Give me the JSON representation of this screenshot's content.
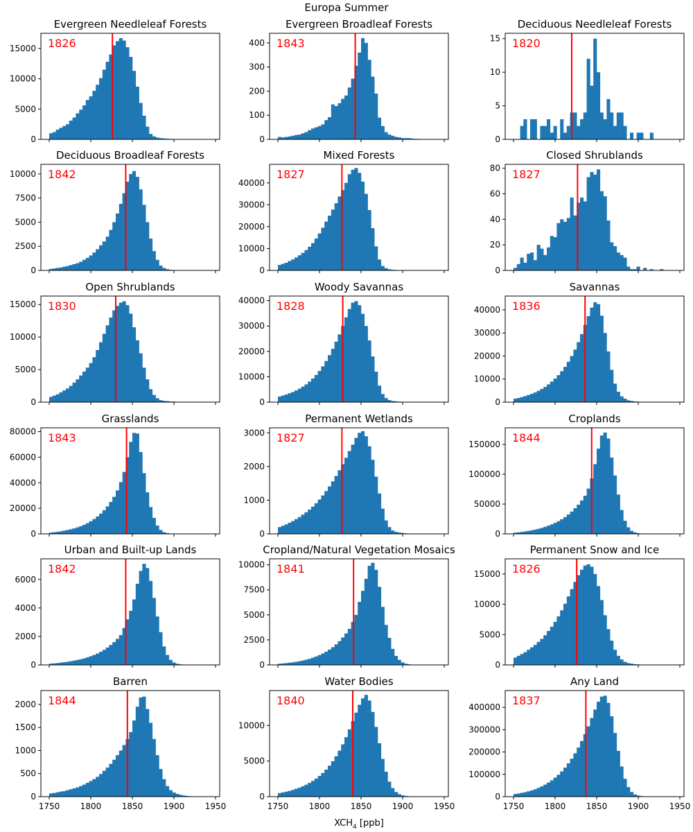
{
  "chart_data": {
    "type": "bar",
    "title": "Europa Summer",
    "xlabel": "XCH4 [ppb]",
    "xlabel_main": "XCH",
    "xlabel_sub": "4",
    "xlabel_units": " [ppb]",
    "xlim": [
      1740,
      1955
    ],
    "x_ticks": [
      "1750",
      "1800",
      "1850",
      "1900",
      "1950"
    ],
    "bin_edges_range": [
      1750,
      1950
    ],
    "bin_width": 4,
    "colors": {
      "bars": "#1f77b4",
      "median": "#ff0000"
    },
    "panels": [
      {
        "title": "Evergreen Needleleaf Forests",
        "median": 1826,
        "median_label": "1826",
        "ylim": [
          0,
          17500
        ],
        "y_ticks": [
          "0",
          "5000",
          "10000",
          "15000"
        ],
        "values": [
          1000,
          1200,
          1600,
          1900,
          2200,
          2500,
          3100,
          3600,
          4300,
          4900,
          5600,
          6500,
          7100,
          8000,
          9000,
          10100,
          11500,
          12800,
          14000,
          15500,
          16200,
          16700,
          16300,
          15200,
          13600,
          11300,
          8700,
          6000,
          3900,
          2100,
          900,
          500,
          300,
          200,
          150,
          100,
          80,
          60,
          50,
          40,
          30,
          20,
          10,
          10,
          5,
          5,
          0,
          0,
          0,
          0
        ]
      },
      {
        "title": "Evergreen Broadleaf Forests",
        "median": 1843,
        "median_label": "1843",
        "ylim": [
          0,
          440
        ],
        "y_ticks": [
          "0",
          "100",
          "200",
          "300",
          "400"
        ],
        "values": [
          10,
          8,
          10,
          12,
          15,
          18,
          20,
          25,
          30,
          38,
          45,
          50,
          55,
          62,
          80,
          92,
          145,
          138,
          150,
          168,
          182,
          215,
          252,
          305,
          360,
          420,
          400,
          330,
          260,
          190,
          90,
          55,
          30,
          20,
          15,
          10,
          8,
          5,
          5,
          5,
          3,
          2,
          2,
          1,
          1,
          1,
          0,
          0,
          0,
          0
        ]
      },
      {
        "title": "Deciduous Needleleaf Forests",
        "median": 1820,
        "median_label": "1820",
        "ylim": [
          0,
          15.8
        ],
        "y_ticks": [
          "0",
          "5",
          "10",
          "15"
        ],
        "values": [
          0,
          0,
          2,
          3,
          0,
          3,
          3,
          0,
          2,
          2,
          3,
          1,
          2,
          0,
          3,
          1,
          2,
          4,
          4,
          2,
          3,
          4,
          12,
          8,
          15,
          10,
          4,
          3,
          6,
          4,
          2,
          4,
          4,
          2,
          0,
          1,
          0,
          1,
          1,
          0,
          0,
          1,
          0,
          0,
          0,
          0,
          0,
          0,
          0,
          0
        ]
      },
      {
        "title": "Deciduous Broadleaf Forests",
        "median": 1842,
        "median_label": "1842",
        "ylim": [
          0,
          11000
        ],
        "y_ticks": [
          "0",
          "2500",
          "5000",
          "7500",
          "10000"
        ],
        "values": [
          150,
          200,
          250,
          300,
          380,
          450,
          550,
          650,
          750,
          900,
          1100,
          1300,
          1550,
          1850,
          2200,
          2600,
          3000,
          3500,
          4200,
          5000,
          5900,
          6900,
          8000,
          9200,
          10000,
          10300,
          9700,
          8400,
          6800,
          5000,
          3300,
          2000,
          1100,
          500,
          250,
          120,
          60,
          30,
          15,
          10,
          5,
          5,
          0,
          0,
          0,
          0,
          0,
          0,
          0,
          0
        ]
      },
      {
        "title": "Mixed Forests",
        "median": 1827,
        "median_label": "1827",
        "ylim": [
          0,
          48500
        ],
        "y_ticks": [
          "0",
          "10000",
          "20000",
          "30000",
          "40000"
        ],
        "values": [
          2500,
          3000,
          3500,
          4300,
          5000,
          5900,
          6900,
          8000,
          9300,
          10800,
          12500,
          14600,
          16900,
          19500,
          22300,
          25000,
          27800,
          30700,
          33800,
          36700,
          40000,
          44000,
          46000,
          46800,
          44600,
          40600,
          35000,
          27600,
          19300,
          11000,
          5000,
          2000,
          1000,
          500,
          300,
          200,
          150,
          100,
          60,
          40,
          20,
          10,
          5,
          5,
          0,
          0,
          0,
          0,
          0,
          0
        ]
      },
      {
        "title": "Closed Shrublands",
        "median": 1827,
        "median_label": "1827",
        "ylim": [
          0,
          83
        ],
        "y_ticks": [
          "0",
          "20",
          "40",
          "60",
          "80"
        ],
        "values": [
          2,
          5,
          10,
          6,
          13,
          14,
          8,
          20,
          17,
          12,
          18,
          27,
          26,
          37,
          40,
          38,
          41,
          57,
          43,
          53,
          57,
          54,
          73,
          77,
          75,
          79,
          62,
          58,
          39,
          22,
          19,
          14,
          12,
          10,
          3,
          1,
          1,
          3,
          0,
          2,
          0,
          1,
          0,
          0,
          1,
          0,
          0,
          0,
          0,
          0
        ]
      },
      {
        "title": "Open Shrublands",
        "median": 1830,
        "median_label": "1830",
        "ylim": [
          0,
          16300
        ],
        "y_ticks": [
          "0",
          "5000",
          "10000",
          "15000"
        ],
        "values": [
          800,
          1000,
          1200,
          1500,
          1800,
          2100,
          2500,
          3000,
          3500,
          4100,
          4700,
          5300,
          6000,
          6900,
          8000,
          9200,
          10500,
          11800,
          13000,
          14100,
          14800,
          15300,
          15500,
          14900,
          13600,
          11500,
          9500,
          7500,
          5300,
          3500,
          2000,
          1100,
          600,
          300,
          200,
          150,
          100,
          80,
          60,
          40,
          30,
          20,
          10,
          10,
          5,
          0,
          0,
          0,
          0,
          0
        ]
      },
      {
        "title": "Woody Savannas",
        "median": 1828,
        "median_label": "1828",
        "ylim": [
          0,
          41800
        ],
        "y_ticks": [
          "0",
          "10000",
          "20000",
          "30000",
          "40000"
        ],
        "values": [
          2200,
          2600,
          3000,
          3500,
          4000,
          4600,
          5300,
          6100,
          7000,
          8100,
          9300,
          10700,
          12300,
          14100,
          16200,
          18500,
          21000,
          23800,
          26700,
          30000,
          33400,
          36700,
          39200,
          39800,
          38200,
          34800,
          30000,
          24300,
          18000,
          12000,
          6500,
          3200,
          1600,
          800,
          450,
          300,
          200,
          150,
          100,
          60,
          40,
          20,
          10,
          5,
          0,
          0,
          0,
          0,
          0,
          0
        ]
      },
      {
        "title": "Savannas",
        "median": 1836,
        "median_label": "1836",
        "ylim": [
          0,
          46000
        ],
        "y_ticks": [
          "0",
          "10000",
          "20000",
          "30000",
          "40000"
        ],
        "values": [
          1500,
          1800,
          2200,
          2600,
          3100,
          3600,
          4200,
          4900,
          5700,
          6600,
          7700,
          8900,
          10200,
          11700,
          13400,
          15300,
          17500,
          20000,
          22800,
          26000,
          29500,
          33500,
          37300,
          41000,
          43300,
          42500,
          37500,
          30000,
          22000,
          14000,
          8000,
          4500,
          2500,
          1500,
          800,
          500,
          300,
          200,
          100,
          60,
          30,
          10,
          5,
          0,
          0,
          0,
          0,
          0,
          0,
          0
        ]
      },
      {
        "title": "Grasslands",
        "median": 1843,
        "median_label": "1843",
        "ylim": [
          0,
          83000
        ],
        "y_ticks": [
          "0",
          "20000",
          "40000",
          "60000",
          "80000"
        ],
        "values": [
          1000,
          1300,
          1600,
          2000,
          2500,
          3000,
          3600,
          4300,
          5100,
          6000,
          7100,
          8400,
          9900,
          11600,
          13600,
          15900,
          18500,
          21500,
          25000,
          29000,
          34000,
          40500,
          48500,
          60000,
          72000,
          79000,
          78500,
          64000,
          47500,
          32500,
          21000,
          12500,
          6500,
          3000,
          1300,
          600,
          300,
          150,
          80,
          40,
          20,
          10,
          5,
          0,
          0,
          0,
          0,
          0,
          0,
          0
        ]
      },
      {
        "title": "Permanent Wetlands",
        "median": 1827,
        "median_label": "1827",
        "ylim": [
          0,
          3150
        ],
        "y_ticks": [
          "0",
          "1000",
          "2000",
          "3000"
        ],
        "values": [
          200,
          240,
          280,
          330,
          380,
          440,
          500,
          570,
          640,
          720,
          810,
          910,
          1020,
          1140,
          1270,
          1410,
          1560,
          1720,
          1890,
          2070,
          2260,
          2460,
          2650,
          2850,
          3000,
          3050,
          2900,
          2600,
          2200,
          1700,
          1200,
          750,
          400,
          200,
          100,
          60,
          40,
          25,
          15,
          10,
          5,
          3,
          2,
          1,
          0,
          0,
          0,
          0,
          0,
          0
        ]
      },
      {
        "title": "Croplands",
        "median": 1844,
        "median_label": "1844",
        "ylim": [
          0,
          178000
        ],
        "y_ticks": [
          "0",
          "50000",
          "100000",
          "150000"
        ],
        "values": [
          2000,
          2600,
          3300,
          4100,
          5000,
          6000,
          7200,
          8500,
          10000,
          11800,
          13800,
          16000,
          18500,
          21300,
          24500,
          28200,
          32500,
          37500,
          43000,
          49000,
          56000,
          64000,
          76000,
          93000,
          117000,
          143000,
          165000,
          170000,
          160000,
          128000,
          98000,
          66000,
          40000,
          22000,
          11000,
          5000,
          2500,
          1200,
          600,
          300,
          150,
          80,
          40,
          20,
          10,
          5,
          0,
          0,
          0,
          0
        ]
      },
      {
        "title": "Urban and Built-up Lands",
        "median": 1842,
        "median_label": "1842",
        "ylim": [
          0,
          7450
        ],
        "y_ticks": [
          "0",
          "2000",
          "4000",
          "6000"
        ],
        "values": [
          90,
          110,
          130,
          160,
          190,
          220,
          260,
          300,
          350,
          400,
          460,
          530,
          610,
          700,
          800,
          920,
          1060,
          1220,
          1400,
          1600,
          1830,
          2100,
          2600,
          3200,
          3800,
          4600,
          5700,
          6600,
          7100,
          6800,
          5900,
          4700,
          3400,
          2300,
          1300,
          700,
          350,
          170,
          80,
          40,
          20,
          10,
          5,
          3,
          0,
          0,
          0,
          0,
          0,
          0
        ]
      },
      {
        "title": "Cropland/Natural Vegetation Mosaics",
        "median": 1841,
        "median_label": "1841",
        "ylim": [
          0,
          10600
        ],
        "y_ticks": [
          "0",
          "2500",
          "5000",
          "7500",
          "10000"
        ],
        "values": [
          120,
          150,
          180,
          220,
          260,
          310,
          370,
          440,
          520,
          610,
          720,
          840,
          980,
          1140,
          1320,
          1530,
          1770,
          2050,
          2370,
          2740,
          3150,
          3600,
          4300,
          5000,
          6300,
          7400,
          8600,
          9900,
          10200,
          9500,
          7800,
          5800,
          4000,
          2700,
          1600,
          900,
          500,
          250,
          120,
          60,
          30,
          15,
          10,
          5,
          0,
          0,
          0,
          0,
          0,
          0
        ]
      },
      {
        "title": "Permanent Snow and Ice",
        "median": 1826,
        "median_label": "1826",
        "ylim": [
          0,
          17500
        ],
        "y_ticks": [
          "0",
          "5000",
          "10000",
          "15000"
        ],
        "values": [
          1200,
          1500,
          1800,
          2100,
          2500,
          2900,
          3300,
          3800,
          4300,
          4900,
          5600,
          6300,
          7100,
          8000,
          9000,
          10100,
          11300,
          12500,
          13700,
          14800,
          15700,
          16400,
          16600,
          16200,
          15000,
          13000,
          10700,
          8200,
          5900,
          4000,
          2500,
          1500,
          900,
          500,
          300,
          200,
          120,
          80,
          50,
          30,
          20,
          10,
          5,
          0,
          0,
          0,
          0,
          0,
          0,
          0
        ]
      },
      {
        "title": "Barren",
        "median": 1844,
        "median_label": "1844",
        "ylim": [
          0,
          2300
        ],
        "y_ticks": [
          "0",
          "500",
          "1000",
          "1500",
          "2000"
        ],
        "values": [
          70,
          80,
          95,
          110,
          120,
          140,
          160,
          180,
          200,
          230,
          260,
          300,
          340,
          380,
          430,
          490,
          560,
          630,
          710,
          800,
          900,
          1000,
          1120,
          1250,
          1400,
          1650,
          1950,
          2150,
          2170,
          1900,
          1600,
          1250,
          900,
          600,
          380,
          230,
          140,
          90,
          60,
          40,
          25,
          15,
          10,
          5,
          3,
          2,
          1,
          0,
          0,
          0
        ]
      },
      {
        "title": "Water Bodies",
        "median": 1840,
        "median_label": "1840",
        "ylim": [
          0,
          14900
        ],
        "y_ticks": [
          "0",
          "5000",
          "10000"
        ],
        "values": [
          500,
          600,
          700,
          800,
          950,
          1100,
          1270,
          1460,
          1680,
          1930,
          2210,
          2530,
          2900,
          3320,
          3800,
          4350,
          4970,
          5670,
          6460,
          7350,
          8350,
          9450,
          10600,
          11800,
          12900,
          13800,
          14300,
          13500,
          11900,
          9800,
          7500,
          5300,
          3500,
          2100,
          1200,
          650,
          350,
          180,
          90,
          50,
          25,
          15,
          8,
          5,
          3,
          0,
          0,
          0,
          0,
          0
        ]
      },
      {
        "title": "Any Land",
        "median": 1837,
        "median_label": "1837",
        "ylim": [
          0,
          475000
        ],
        "y_ticks": [
          "0",
          "100000",
          "200000",
          "300000",
          "400000"
        ],
        "values": [
          12000,
          14000,
          17000,
          20000,
          24000,
          28000,
          33000,
          39000,
          46000,
          54000,
          63000,
          73000,
          85000,
          98000,
          113000,
          130000,
          149000,
          170000,
          194000,
          220000,
          249000,
          280000,
          315000,
          352000,
          390000,
          425000,
          448000,
          452000,
          420000,
          360000,
          285000,
          205000,
          135000,
          80000,
          43000,
          21000,
          10000,
          5000,
          2500,
          1200,
          600,
          300,
          150,
          80,
          40,
          20,
          10,
          5,
          0,
          0
        ]
      }
    ]
  }
}
